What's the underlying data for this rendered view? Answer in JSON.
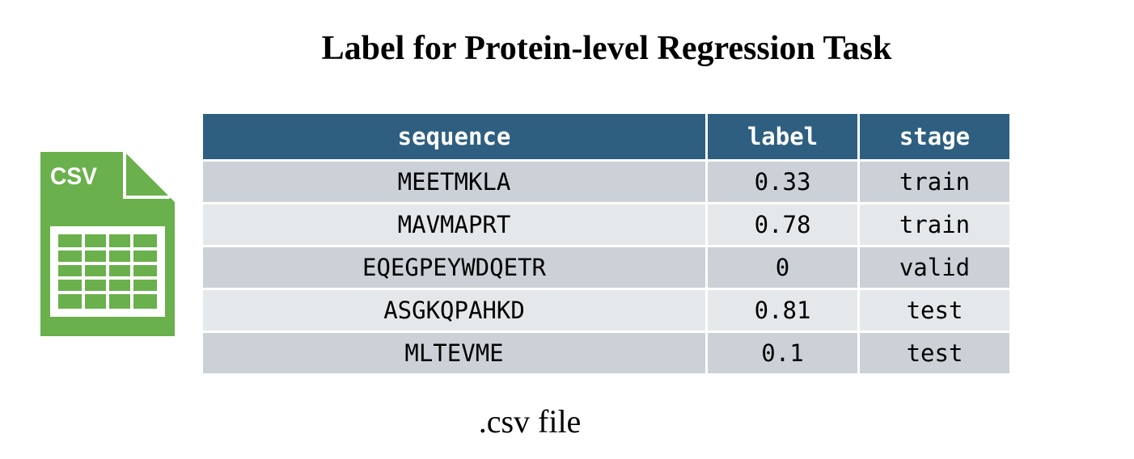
{
  "title": "Label for Protein-level Regression Task",
  "icon": {
    "name": "csv-file-icon",
    "text": "CSV",
    "color": "#6ab04c"
  },
  "table": {
    "headers": [
      "sequence",
      "label",
      "stage"
    ],
    "header_color": "#2e5f80",
    "rows": [
      [
        "MEETMKLA",
        "0.33",
        "train"
      ],
      [
        "MAVMAPRT",
        "0.78",
        "train"
      ],
      [
        "EQEGPEYWDQETR",
        "0",
        "valid"
      ],
      [
        "ASGKQPAHKD",
        "0.81",
        "test"
      ],
      [
        "MLTEVME",
        "0.1",
        "test"
      ]
    ]
  },
  "caption": ".csv file"
}
